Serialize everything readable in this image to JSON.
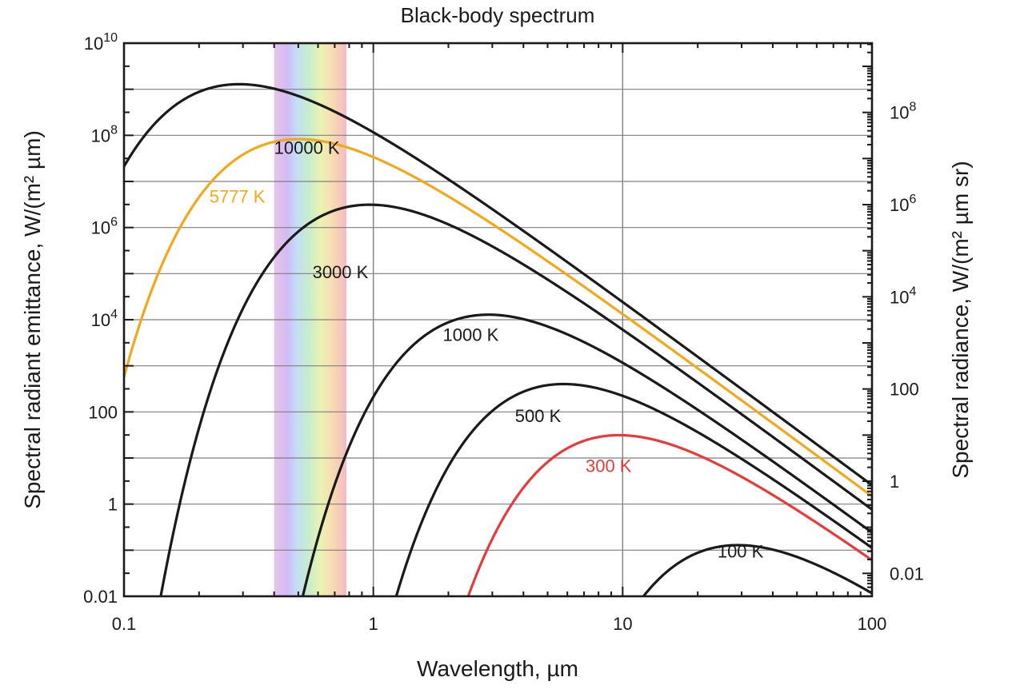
{
  "chart_data": {
    "type": "line",
    "title": "Black-body spectrum",
    "xlabel": "Wavelength, µm",
    "ylabel": "Spectral radiant emittance, W/(m² µm)",
    "ylabel_right": "Spectral radiance, W/(m² µm sr)",
    "x_scale": "log",
    "y_scale": "log",
    "xlim": [
      0.1,
      100
    ],
    "ylim": [
      0.01,
      10000000000
    ],
    "grid": true,
    "x_ticks": [
      {
        "value": 0.1,
        "label": "0.1"
      },
      {
        "value": 1,
        "label": "1"
      },
      {
        "value": 10,
        "label": "10"
      },
      {
        "value": 100,
        "label": "100"
      }
    ],
    "y_ticks": [
      {
        "value": 0.01,
        "base": "0.01",
        "exp": ""
      },
      {
        "value": 1,
        "base": "1",
        "exp": ""
      },
      {
        "value": 100,
        "base": "100",
        "exp": ""
      },
      {
        "value": 10000,
        "base": "10",
        "exp": "4"
      },
      {
        "value": 1000000,
        "base": "10",
        "exp": "6"
      },
      {
        "value": 100000000,
        "base": "10",
        "exp": "8"
      },
      {
        "value": 10000000000,
        "base": "10",
        "exp": "10"
      }
    ],
    "y_ticks_right": [
      {
        "value": 0.01,
        "base": "0.01",
        "exp": ""
      },
      {
        "value": 1,
        "base": "1",
        "exp": ""
      },
      {
        "value": 100,
        "base": "100",
        "exp": ""
      },
      {
        "value": 10000,
        "base": "10",
        "exp": "4"
      },
      {
        "value": 1000000,
        "base": "10",
        "exp": "6"
      },
      {
        "value": 100000000,
        "base": "10",
        "exp": "8"
      }
    ],
    "visible_band": {
      "from": 0.4,
      "to": 0.78
    },
    "series": [
      {
        "name": "10000 K",
        "temperature": 10000,
        "color": "#1a1a1a",
        "label_at": [
          0.4,
          40000000
        ]
      },
      {
        "name": "5777 K",
        "temperature": 5777,
        "color": "#f2a81d",
        "label_at": [
          0.22,
          3500000
        ]
      },
      {
        "name": "3000 K",
        "temperature": 3000,
        "color": "#1a1a1a",
        "label_at": [
          0.57,
          80000
        ]
      },
      {
        "name": "1000 K",
        "temperature": 1000,
        "color": "#1a1a1a",
        "label_at": [
          1.9,
          3500
        ]
      },
      {
        "name": "500 K",
        "temperature": 500,
        "color": "#1a1a1a",
        "label_at": [
          3.7,
          60
        ]
      },
      {
        "name": "300 K",
        "temperature": 300,
        "color": "#e63b3b",
        "label_at": [
          7.1,
          5
        ]
      },
      {
        "name": "100 K",
        "temperature": 100,
        "color": "#1a1a1a",
        "label_at": [
          24,
          0.07
        ]
      }
    ]
  }
}
